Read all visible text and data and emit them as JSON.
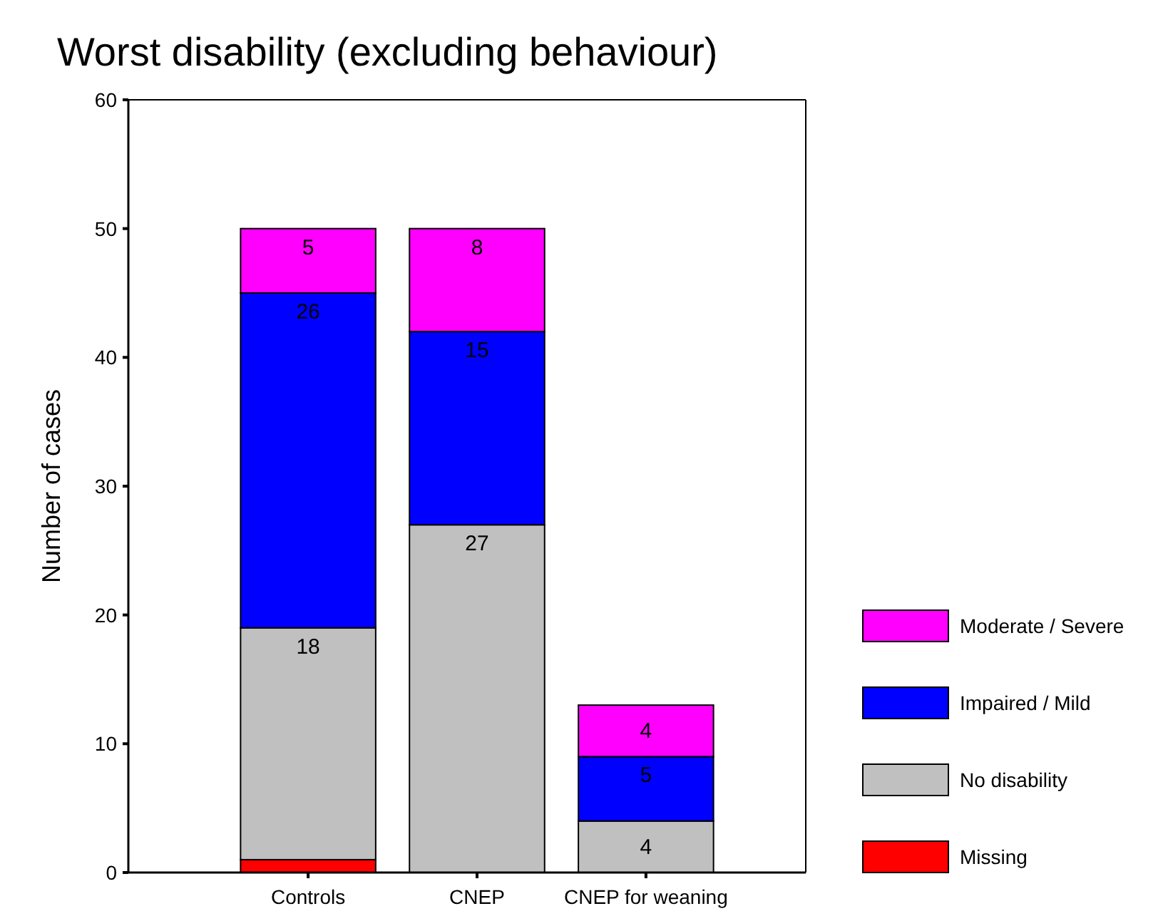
{
  "chart_data": {
    "type": "bar",
    "title": "Worst disability (excluding behaviour)",
    "ylabel": "Number of cases",
    "categories": [
      "Controls",
      "CNEP",
      "CNEP for weaning"
    ],
    "stacked": true,
    "ylim": [
      0,
      60
    ],
    "yticks": [
      0,
      10,
      20,
      30,
      40,
      50,
      60
    ],
    "legend": "right",
    "grid": false,
    "series": [
      {
        "name": "Missing",
        "color": "#ff0000",
        "values": [
          1,
          0,
          0
        ],
        "value_labels": [
          null,
          null,
          null
        ]
      },
      {
        "name": "No disability",
        "color": "#c0c0c0",
        "values": [
          18,
          27,
          4
        ],
        "value_labels": [
          "18",
          "27",
          "4"
        ]
      },
      {
        "name": "Impaired / Mild",
        "color": "#0000ff",
        "values": [
          26,
          15,
          5
        ],
        "value_labels": [
          "26",
          "15",
          "5"
        ]
      },
      {
        "name": "Moderate / Severe",
        "color": "#ff00ff",
        "values": [
          5,
          8,
          4
        ],
        "value_labels": [
          "5",
          "8",
          "4"
        ]
      }
    ]
  }
}
